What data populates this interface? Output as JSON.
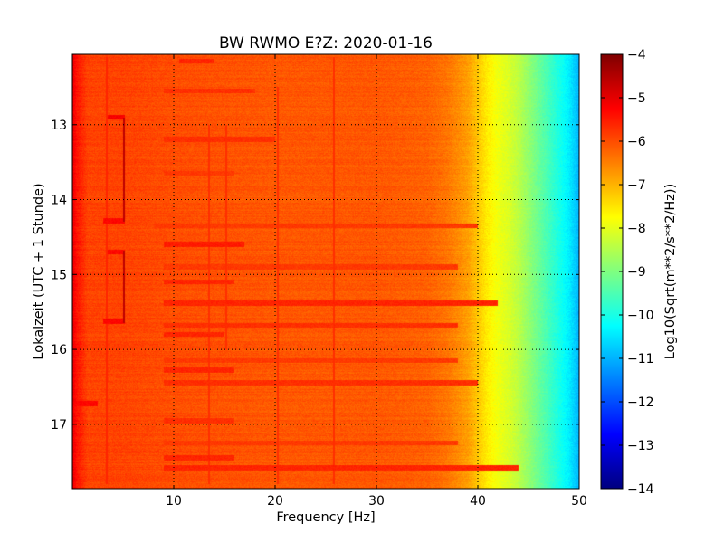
{
  "chart_data": {
    "type": "heatmap",
    "title": "BW RWMO E?Z: 2020-01-16",
    "xlabel": "Frequency [Hz]",
    "ylabel": "Lokalzeit (UTC + 1 Stunde)",
    "xlim": [
      0,
      50
    ],
    "ylim": [
      12.06,
      17.86
    ],
    "y_inverted": true,
    "x_ticks": [
      10,
      20,
      30,
      40,
      50
    ],
    "x_tick_labels": [
      "10",
      "20",
      "30",
      "40",
      "50"
    ],
    "y_ticks": [
      13,
      14,
      15,
      16,
      17
    ],
    "y_tick_labels": [
      "13",
      "14",
      "15",
      "16",
      "17"
    ],
    "grid": true,
    "colormap": "jet",
    "colorbar": {
      "label": "Log10(Sqrt(m**2/s**2/Hz))",
      "min": -14,
      "max": -4,
      "ticks": [
        -4,
        -5,
        -6,
        -7,
        -8,
        -9,
        -10,
        -11,
        -12,
        -13,
        -14
      ],
      "tick_labels": [
        "−4",
        "−5",
        "−6",
        "−7",
        "−8",
        "−9",
        "−10",
        "−11",
        "−12",
        "−13",
        "−14"
      ]
    },
    "frequency_profile": {
      "x": [
        0,
        0.4,
        1.5,
        5,
        10,
        20,
        30,
        35,
        37,
        39,
        40,
        41,
        42,
        43,
        44,
        45,
        46,
        47,
        48,
        49,
        49.5,
        50
      ],
      "values": [
        -5.0,
        -5.4,
        -5.9,
        -5.9,
        -6.0,
        -6.1,
        -6.1,
        -6.2,
        -6.4,
        -6.8,
        -7.2,
        -7.6,
        -7.9,
        -8.1,
        -8.4,
        -8.8,
        -9.2,
        -9.6,
        -10.0,
        -10.4,
        -10.7,
        -11.0
      ]
    },
    "bands": [
      {
        "t": 12.15,
        "x0": 10.5,
        "x1": 14.0,
        "value": -5.6
      },
      {
        "t": 12.55,
        "x0": 9.0,
        "x1": 18.0,
        "value": -5.7
      },
      {
        "t": 12.9,
        "x0": 3.5,
        "x1": 5.2,
        "value": -5.2
      },
      {
        "t": 13.2,
        "x0": 9.0,
        "x1": 20.0,
        "value": -5.7
      },
      {
        "t": 13.65,
        "x0": 9.0,
        "x1": 16.0,
        "value": -5.8
      },
      {
        "t": 14.28,
        "x0": 3.0,
        "x1": 5.2,
        "value": -5.3
      },
      {
        "t": 14.35,
        "x0": 8.0,
        "x1": 40.0,
        "value": -5.8
      },
      {
        "t": 14.6,
        "x0": 9.0,
        "x1": 17.0,
        "value": -5.5
      },
      {
        "t": 14.7,
        "x0": 3.5,
        "x1": 5.2,
        "value": -5.3
      },
      {
        "t": 14.9,
        "x0": 9.0,
        "x1": 38.0,
        "value": -5.8
      },
      {
        "t": 15.1,
        "x0": 9.0,
        "x1": 16.0,
        "value": -5.6
      },
      {
        "t": 15.38,
        "x0": 9.0,
        "x1": 42.0,
        "value": -5.6
      },
      {
        "t": 15.62,
        "x0": 3.0,
        "x1": 5.2,
        "value": -5.3
      },
      {
        "t": 15.68,
        "x0": 9.0,
        "x1": 38.0,
        "value": -5.7
      },
      {
        "t": 15.8,
        "x0": 9.0,
        "x1": 15.0,
        "value": -5.6
      },
      {
        "t": 16.15,
        "x0": 9.0,
        "x1": 38.0,
        "value": -5.8
      },
      {
        "t": 16.28,
        "x0": 9.0,
        "x1": 16.0,
        "value": -5.6
      },
      {
        "t": 16.45,
        "x0": 9.0,
        "x1": 40.0,
        "value": -5.7
      },
      {
        "t": 16.72,
        "x0": 0.0,
        "x1": 2.5,
        "value": -5.3
      },
      {
        "t": 16.95,
        "x0": 9.0,
        "x1": 16.0,
        "value": -5.7
      },
      {
        "t": 17.25,
        "x0": 9.0,
        "x1": 38.0,
        "value": -5.8
      },
      {
        "t": 17.45,
        "x0": 9.0,
        "x1": 16.0,
        "value": -5.6
      },
      {
        "t": 17.58,
        "x0": 9.0,
        "x1": 44.0,
        "value": -5.6
      }
    ],
    "vertical_lines": [
      {
        "x": 5.1,
        "t0": 12.9,
        "t1": 14.3,
        "value": -4.6
      },
      {
        "x": 5.1,
        "t0": 14.68,
        "t1": 15.65,
        "value": -4.6
      },
      {
        "x": 3.4,
        "t0": 12.1,
        "t1": 17.8,
        "value": -5.6
      },
      {
        "x": 13.5,
        "t0": 13.0,
        "t1": 17.8,
        "value": -5.7
      },
      {
        "x": 15.2,
        "t0": 13.0,
        "t1": 16.0,
        "value": -5.7
      },
      {
        "x": 20.3,
        "t0": 12.5,
        "t1": 17.8,
        "value": -5.7
      },
      {
        "x": 25.8,
        "t0": 12.1,
        "t1": 17.8,
        "value": -5.7
      }
    ]
  }
}
